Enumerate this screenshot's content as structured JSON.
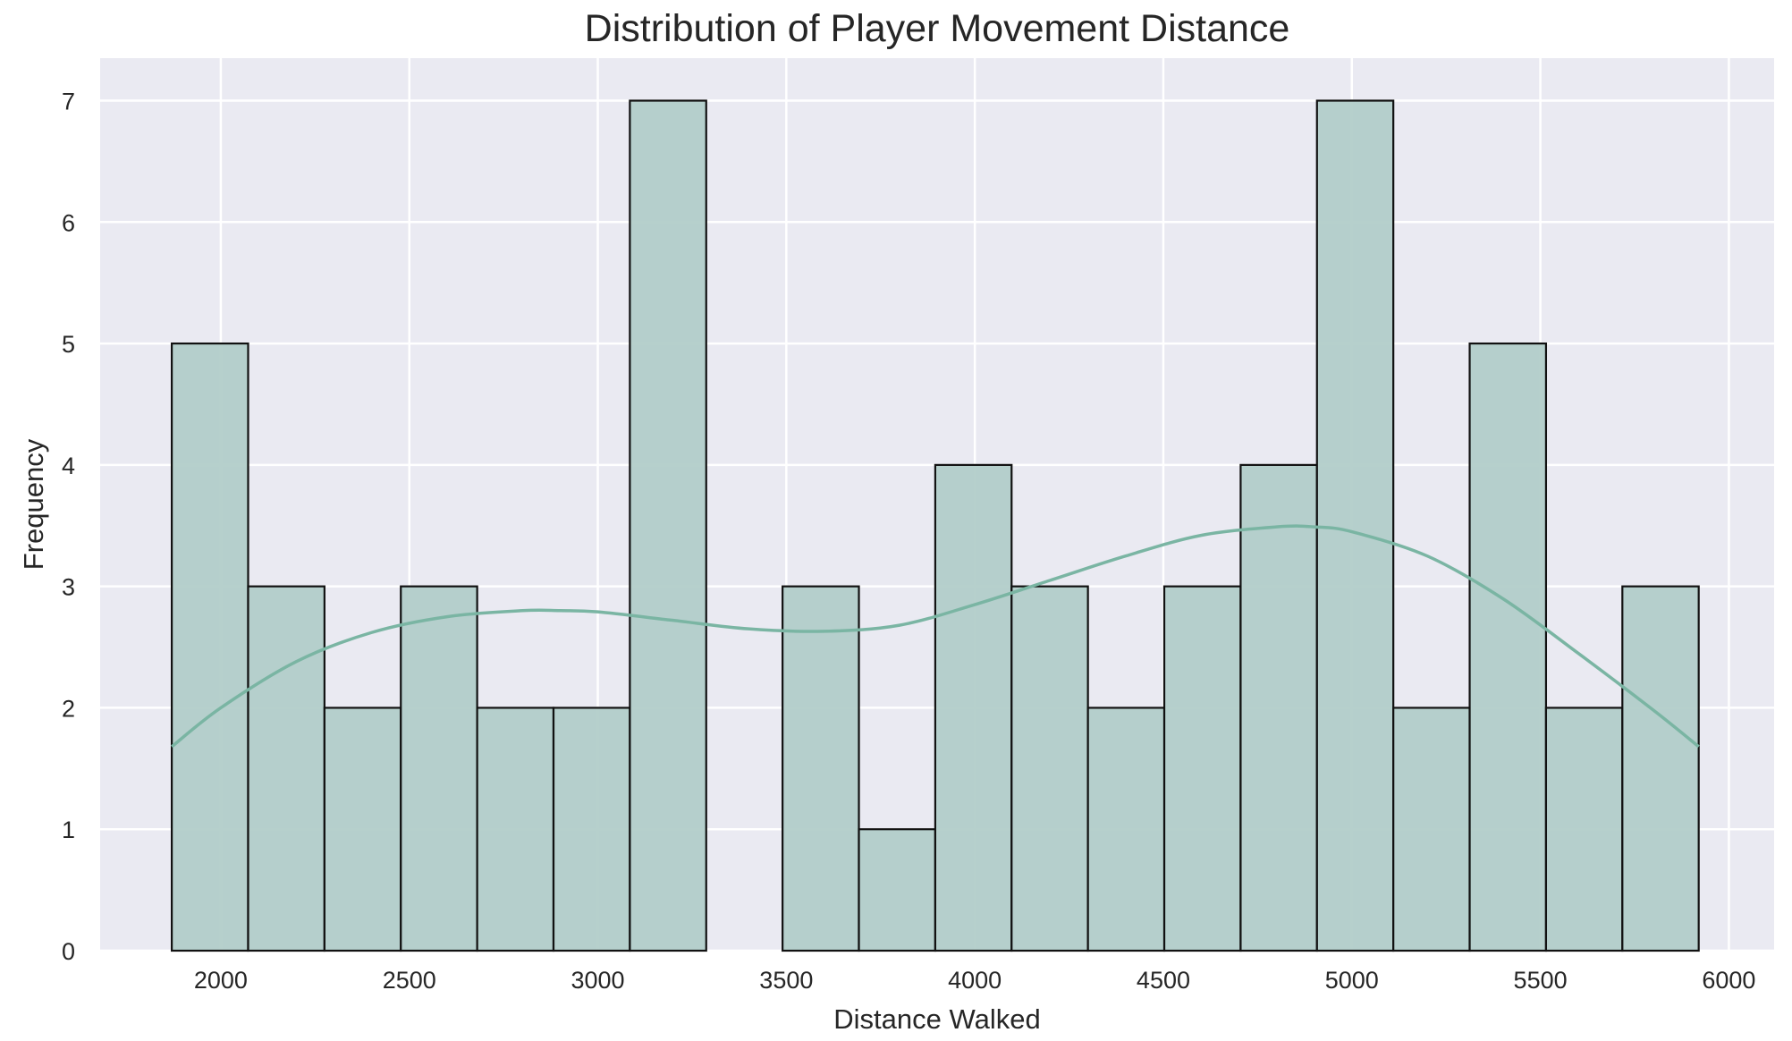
{
  "chart_data": {
    "type": "bar",
    "title": "Distribution of Player Movement Distance",
    "xlabel": "Distance Walked",
    "ylabel": "Frequency",
    "xlim": [
      1680,
      6120
    ],
    "ylim": [
      0,
      7.35
    ],
    "x_ticks": [
      2000,
      2500,
      3000,
      3500,
      4000,
      4500,
      5000,
      5500,
      6000
    ],
    "y_ticks": [
      0,
      1,
      2,
      3,
      4,
      5,
      6,
      7
    ],
    "grid": true,
    "bin_edges": [
      1870,
      2072.5,
      2275,
      2477.5,
      2680,
      2882.5,
      3085,
      3287.5,
      3490,
      3692.5,
      3895,
      4097.5,
      4300,
      4502.5,
      4705,
      4907.5,
      5110,
      5312.5,
      5515,
      5717.5,
      5920
    ],
    "counts": [
      5,
      3,
      2,
      3,
      2,
      2,
      7,
      0,
      3,
      1,
      4,
      3,
      2,
      3,
      4,
      7,
      2,
      5,
      2,
      3
    ],
    "kde": {
      "x": [
        1870,
        2000,
        2200,
        2400,
        2600,
        2800,
        2900,
        3000,
        3200,
        3400,
        3600,
        3800,
        4000,
        4200,
        4400,
        4600,
        4800,
        4900,
        5000,
        5200,
        5400,
        5600,
        5800,
        5920
      ],
      "y": [
        1.68,
        2.0,
        2.38,
        2.62,
        2.75,
        2.8,
        2.8,
        2.79,
        2.72,
        2.65,
        2.63,
        2.68,
        2.85,
        3.05,
        3.25,
        3.42,
        3.49,
        3.49,
        3.45,
        3.25,
        2.9,
        2.45,
        1.98,
        1.68
      ]
    },
    "colors": {
      "background": "#eaeaf2",
      "grid": "#ffffff",
      "bar_fill": "#b2cdc9",
      "bar_edge": "#111111",
      "kde_line": "#7ab5a3"
    }
  }
}
